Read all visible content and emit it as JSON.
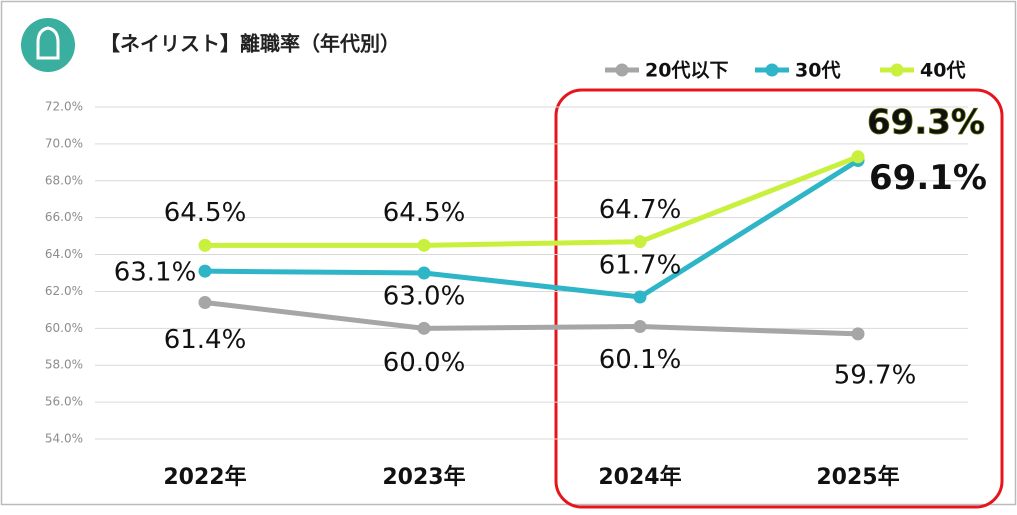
{
  "chart_data": {
    "type": "line",
    "title": "【ネイリスト】離職率（年代別）",
    "categories": [
      "2022年",
      "2023年",
      "2024年",
      "2025年"
    ],
    "series": [
      {
        "name": "20代以下",
        "color": "#a6a6a6",
        "values": [
          61.4,
          60.0,
          60.1,
          59.7
        ],
        "value_labels": [
          "61.4%",
          "60.0%",
          "60.1%",
          "59.7%"
        ]
      },
      {
        "name": "30代",
        "color": "#2eb5c8",
        "values": [
          63.1,
          63.0,
          61.7,
          69.1
        ],
        "value_labels": [
          "63.1%",
          "63.0%",
          "61.7%",
          "69.1%"
        ]
      },
      {
        "name": "40代",
        "color": "#c8f03c",
        "values": [
          64.5,
          64.5,
          64.7,
          69.3
        ],
        "value_labels": [
          "64.5%",
          "64.5%",
          "64.7%",
          "69.3%"
        ]
      }
    ],
    "ylim": [
      54,
      72
    ],
    "yticks": [
      {
        "value": 54,
        "label": "54.0%"
      },
      {
        "value": 56,
        "label": "56.0%"
      },
      {
        "value": 58,
        "label": "58.0%"
      },
      {
        "value": 60,
        "label": "60.0%"
      },
      {
        "value": 62,
        "label": "62.0%"
      },
      {
        "value": 64,
        "label": "64.0%"
      },
      {
        "value": 66,
        "label": "66.0%"
      },
      {
        "value": 68,
        "label": "68.0%"
      },
      {
        "value": 70,
        "label": "70.0%"
      },
      {
        "value": 72,
        "label": "72.0%"
      }
    ],
    "grid": true,
    "legend": "top-right"
  }
}
